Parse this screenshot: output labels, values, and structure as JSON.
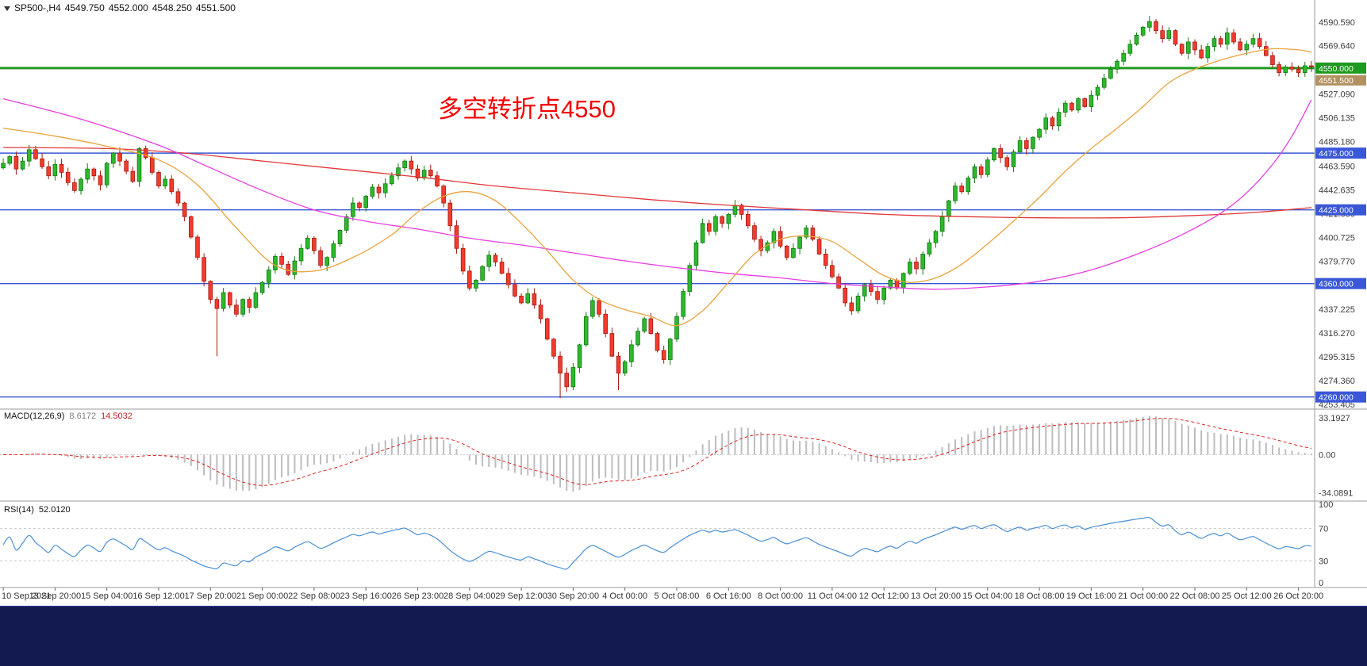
{
  "header": {
    "symbol": "SP500-,H4",
    "open": "4549.750",
    "high": "4552.000",
    "low": "4548.250",
    "close": "4551.500"
  },
  "annotation": {
    "text": "多空转折点4550",
    "color": "#f50000"
  },
  "colors": {
    "background": "#ffffff",
    "up_candle": "#2db82d",
    "up_border": "#117a11",
    "down_candle": "#f23b2e",
    "down_border": "#a61b10",
    "ma_fast": "#e8a33d",
    "ma_mid": "#e83de0",
    "ma_slow": "#e03838",
    "hline_blue": "#3a57d7",
    "hline_green": "#1e9a1e",
    "current_price_bg": "#b29160",
    "macd_hist": "#bdbdbd",
    "macd_signal": "#e02020",
    "rsi_line": "#4a8fd4",
    "axis_text": "#3c3c3c",
    "separator": "#9a9a9a",
    "taskbar": "#131a4f"
  },
  "current_price": {
    "label": "4551.500"
  },
  "hlines": [
    {
      "price": 4550,
      "label": "4550.000",
      "color": "#1e9a1e",
      "width": 3
    },
    {
      "price": 4475,
      "label": "4475.000",
      "color": "#3a57d7",
      "width": 1.4
    },
    {
      "price": 4425,
      "label": "4425.000",
      "color": "#3a57d7",
      "width": 1.4
    },
    {
      "price": 4360,
      "label": "4360.000",
      "color": "#3a57d7",
      "width": 1.4
    },
    {
      "price": 4260,
      "label": "4260.000",
      "color": "#3a57d7",
      "width": 1.4
    }
  ],
  "chart_data": {
    "type": "candlestick",
    "symbol": "SP500-",
    "timeframe": "H4",
    "ylim": [
      4250,
      4610
    ],
    "price_axis_labels": [
      "4590.590",
      "4569.640",
      "4548.690",
      "4527.090",
      "4506.135",
      "4485.180",
      "4463.590",
      "4442.635",
      "4421.680",
      "4400.725",
      "4379.770",
      "4358.815",
      "4337.225",
      "4316.270",
      "4295.315",
      "4274.360",
      "4253.405"
    ],
    "x_labels": [
      "10 Sep 2021",
      "13 Sep 20:00",
      "15 Sep 04:00",
      "16 Sep 12:00",
      "17 Sep 20:00",
      "21 Sep 00:00",
      "22 Sep 08:00",
      "23 Sep 16:00",
      "26 Sep 23:00",
      "28 Sep 04:00",
      "29 Sep 12:00",
      "30 Sep 20:00",
      "4 Oct 00:00",
      "5 Oct 08:00",
      "6 Oct 16:00",
      "8 Oct 00:00",
      "11 Oct 04:00",
      "12 Oct 12:00",
      "13 Oct 20:00",
      "15 Oct 04:00",
      "18 Oct 08:00",
      "19 Oct 16:00",
      "21 Oct 00:00",
      "22 Oct 08:00",
      "25 Oct 12:00",
      "26 Oct 20:00"
    ],
    "closes": [
      4466,
      4472,
      4461,
      4468,
      4478,
      4470,
      4463,
      4455,
      4465,
      4458,
      4449,
      4442,
      4452,
      4461,
      4455,
      4447,
      4466,
      4475,
      4468,
      4459,
      4450,
      4479,
      4471,
      4458,
      4446,
      4452,
      4441,
      4431,
      4419,
      4401,
      4383,
      4362,
      4346,
      4338,
      4352,
      4341,
      4333,
      4346,
      4339,
      4352,
      4361,
      4372,
      4384,
      4377,
      4368,
      4380,
      4391,
      4400,
      4389,
      4376,
      4383,
      4395,
      4407,
      4419,
      4431,
      4427,
      4437,
      4445,
      4440,
      4448,
      4455,
      4462,
      4468,
      4461,
      4453,
      4460,
      4455,
      4446,
      4431,
      4411,
      4391,
      4371,
      4356,
      4363,
      4375,
      4385,
      4379,
      4369,
      4359,
      4349,
      4343,
      4351,
      4341,
      4329,
      4311,
      4296,
      4281,
      4269,
      4286,
      4306,
      4331,
      4345,
      4333,
      4316,
      4296,
      4281,
      4291,
      4306,
      4318,
      4329,
      4316,
      4301,
      4293,
      4311,
      4331,
      4353,
      4376,
      4396,
      4413,
      4406,
      4419,
      4413,
      4421,
      4429,
      4421,
      4411,
      4399,
      4389,
      4396,
      4406,
      4393,
      4383,
      4391,
      4401,
      4409,
      4399,
      4386,
      4376,
      4366,
      4356,
      4343,
      4336,
      4349,
      4359,
      4353,
      4346,
      4356,
      4363,
      4356,
      4369,
      4379,
      4373,
      4386,
      4396,
      4406,
      4419,
      4433,
      4446,
      4441,
      4453,
      4463,
      4456,
      4469,
      4479,
      4471,
      4463,
      4476,
      4486,
      4479,
      4489,
      4496,
      4506,
      4499,
      4511,
      4519,
      4513,
      4523,
      4516,
      4526,
      4533,
      4541,
      4549,
      4556,
      4563,
      4571,
      4579,
      4586,
      4591,
      4583,
      4576,
      4583,
      4571,
      4563,
      4573,
      4566,
      4559,
      4569,
      4576,
      4571,
      4581,
      4573,
      4566,
      4571,
      4576,
      4569,
      4561,
      4553,
      4546,
      4551,
      4549,
      4546,
      4552,
      4551.5
    ],
    "low_overrides": {
      "33": 4296,
      "86": 4259,
      "95": 4266
    },
    "ma_fast_orange": [
      [
        0,
        4497
      ],
      [
        8,
        4490
      ],
      [
        16,
        4481
      ],
      [
        24,
        4469
      ],
      [
        30,
        4447
      ],
      [
        36,
        4409
      ],
      [
        42,
        4376
      ],
      [
        48,
        4371
      ],
      [
        54,
        4383
      ],
      [
        60,
        4403
      ],
      [
        64,
        4423
      ],
      [
        68,
        4437
      ],
      [
        72,
        4441
      ],
      [
        76,
        4433
      ],
      [
        80,
        4413
      ],
      [
        84,
        4389
      ],
      [
        88,
        4363
      ],
      [
        92,
        4346
      ],
      [
        96,
        4337
      ],
      [
        100,
        4331
      ],
      [
        104,
        4323
      ],
      [
        108,
        4336
      ],
      [
        112,
        4361
      ],
      [
        116,
        4386
      ],
      [
        120,
        4399
      ],
      [
        124,
        4402
      ],
      [
        128,
        4397
      ],
      [
        132,
        4382
      ],
      [
        136,
        4367
      ],
      [
        140,
        4361
      ],
      [
        144,
        4365
      ],
      [
        148,
        4377
      ],
      [
        152,
        4395
      ],
      [
        156,
        4415
      ],
      [
        160,
        4436
      ],
      [
        164,
        4459
      ],
      [
        168,
        4479
      ],
      [
        172,
        4497
      ],
      [
        176,
        4516
      ],
      [
        180,
        4537
      ],
      [
        184,
        4549
      ],
      [
        188,
        4557
      ],
      [
        192,
        4563
      ],
      [
        196,
        4567
      ],
      [
        200,
        4566
      ],
      [
        202,
        4564
      ]
    ],
    "ma_mid_magenta": [
      [
        0,
        4523
      ],
      [
        12,
        4505
      ],
      [
        24,
        4482
      ],
      [
        32,
        4462
      ],
      [
        40,
        4442
      ],
      [
        48,
        4425
      ],
      [
        56,
        4415
      ],
      [
        64,
        4408
      ],
      [
        72,
        4400
      ],
      [
        80,
        4394
      ],
      [
        88,
        4387
      ],
      [
        96,
        4380
      ],
      [
        104,
        4374
      ],
      [
        112,
        4369
      ],
      [
        120,
        4365
      ],
      [
        128,
        4360
      ],
      [
        136,
        4357
      ],
      [
        144,
        4355
      ],
      [
        152,
        4357
      ],
      [
        160,
        4362
      ],
      [
        168,
        4372
      ],
      [
        176,
        4388
      ],
      [
        182,
        4403
      ],
      [
        188,
        4422
      ],
      [
        192,
        4440
      ],
      [
        196,
        4465
      ],
      [
        199,
        4490
      ],
      [
        202,
        4522
      ]
    ],
    "ma_slow_red": [
      [
        0,
        4480
      ],
      [
        16,
        4479
      ],
      [
        28,
        4475
      ],
      [
        40,
        4468
      ],
      [
        52,
        4461
      ],
      [
        64,
        4454
      ],
      [
        76,
        4446
      ],
      [
        88,
        4440
      ],
      [
        100,
        4434
      ],
      [
        112,
        4429
      ],
      [
        124,
        4425
      ],
      [
        136,
        4421
      ],
      [
        148,
        4419
      ],
      [
        160,
        4418
      ],
      [
        172,
        4418
      ],
      [
        184,
        4420
      ],
      [
        194,
        4423
      ],
      [
        202,
        4427
      ]
    ],
    "macd": {
      "label": "MACD(12,26,9)",
      "value_main": "8.6172",
      "value_signal": "14.5032",
      "axis": [
        "33.1927",
        "0.00",
        "-34.0891"
      ]
    },
    "rsi": {
      "label": "RSI(14)",
      "value": "52.0120",
      "axis": [
        "100",
        "70",
        "30",
        "0"
      ],
      "levels": [
        70,
        30
      ]
    }
  }
}
